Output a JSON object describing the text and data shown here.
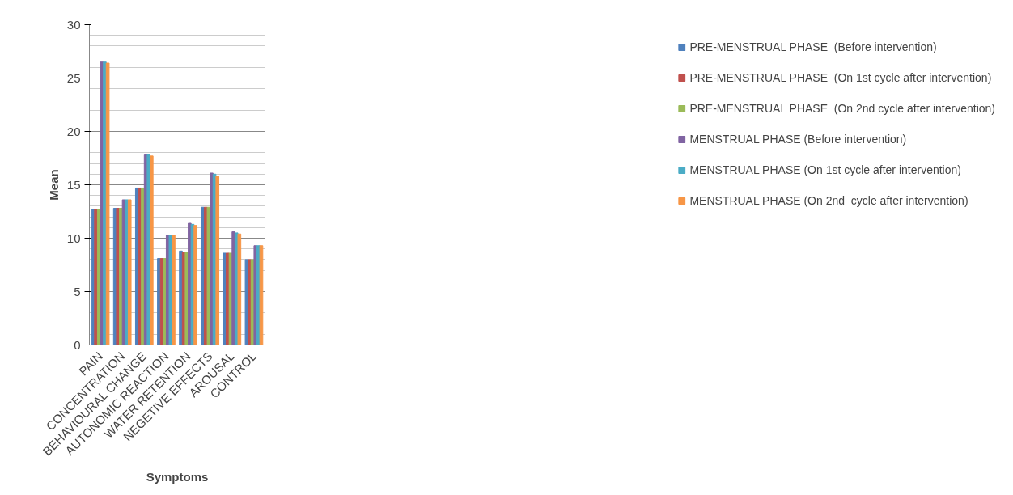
{
  "chart_data": {
    "type": "bar",
    "xlabel": "Symptoms",
    "ylabel": "Mean",
    "categories": [
      "PAIN",
      "CONCENTRATION",
      "BEHAVIOURAL CHANGE",
      "AUTONOMIC REACTION",
      "WATER RETENTION",
      "NEGETIVE EFFECTS",
      "AROUSAL",
      "CONTROL"
    ],
    "series": [
      {
        "name": "PRE-MENSTRUAL PHASE  (Before intervention)",
        "color": "#4f81bd",
        "values": [
          12.7,
          12.8,
          14.7,
          8.1,
          8.8,
          12.9,
          8.6,
          8.0
        ]
      },
      {
        "name": "PRE-MENSTRUAL PHASE  (On 1st cycle after intervention)",
        "color": "#c0504d",
        "values": [
          12.7,
          12.8,
          14.7,
          8.1,
          8.7,
          12.9,
          8.6,
          8.0
        ]
      },
      {
        "name": "PRE-MENSTRUAL PHASE  (On 2nd cycle after intervention)",
        "color": "#9bbb59",
        "values": [
          12.7,
          12.8,
          14.7,
          8.1,
          8.7,
          12.9,
          8.6,
          8.0
        ]
      },
      {
        "name": "MENSTRUAL PHASE (Before intervention)",
        "color": "#8064a2",
        "values": [
          26.5,
          13.6,
          17.8,
          10.3,
          11.4,
          16.1,
          10.6,
          9.3
        ]
      },
      {
        "name": "MENSTRUAL PHASE (On 1st cycle after intervention)",
        "color": "#4bacc6",
        "values": [
          26.5,
          13.6,
          17.8,
          10.3,
          11.3,
          16.0,
          10.5,
          9.3
        ]
      },
      {
        "name": "MENSTRUAL PHASE (On 2nd  cycle after intervention)",
        "color": "#f79646",
        "values": [
          26.4,
          13.6,
          17.7,
          10.3,
          11.2,
          15.8,
          10.4,
          9.3
        ]
      }
    ],
    "ylim": [
      0,
      30
    ],
    "yticks": [
      0,
      5,
      10,
      15,
      20,
      25,
      30
    ],
    "grid": "y",
    "legend": "right"
  }
}
